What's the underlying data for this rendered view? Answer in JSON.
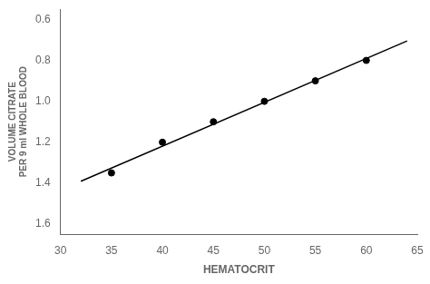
{
  "chart_data": {
    "type": "scatter",
    "xlabel": "HEMATOCRIT",
    "ylabel": [
      "VOLUME CITRATE",
      "PER 9 ml WHOLE BLOOD"
    ],
    "series": [
      {
        "type": "line",
        "color": "#000000",
        "line_style": "solid",
        "x": [
          32,
          64
        ],
        "values": [
          1.3904761904761904,
          0.7047619047619048
        ]
      },
      {
        "type": "scatter",
        "color": "#000000",
        "marker": "circle",
        "x": [
          35,
          40,
          45,
          50,
          55,
          60
        ],
        "values": [
          1.35,
          1.2,
          1.1,
          1.0,
          0.9,
          0.8
        ]
      }
    ],
    "xlim": [
      30,
      65
    ],
    "xticks": [
      30,
      35,
      40,
      45,
      50,
      55,
      60,
      65
    ],
    "ylim": [
      1.65,
      0.55
    ],
    "yticks": [
      0.6,
      0.8,
      {
        "value": 1,
        "label": "1.0"
      },
      1.2,
      1.4,
      1.6
    ],
    "grid": false
  }
}
